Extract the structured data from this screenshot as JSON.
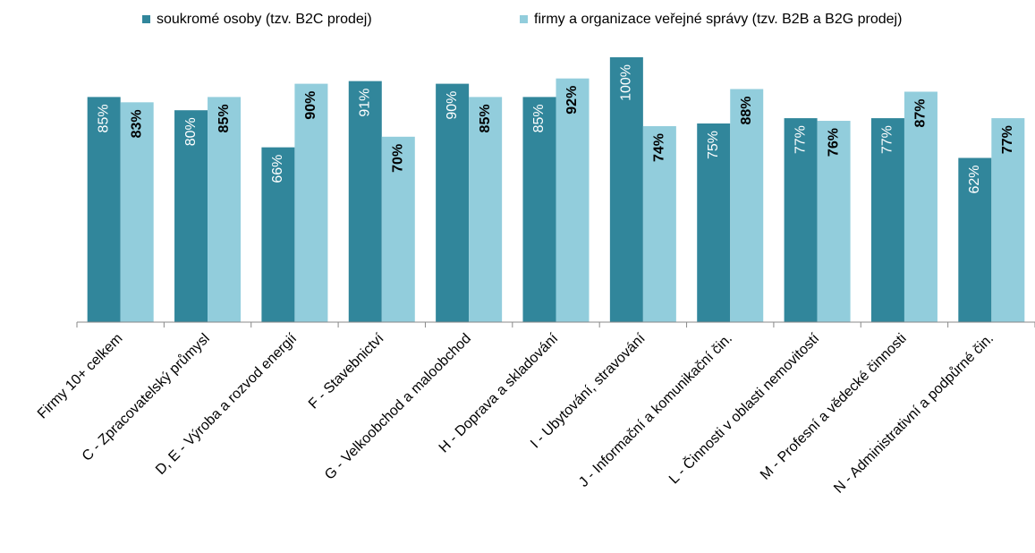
{
  "chart_data": {
    "type": "bar",
    "categories": [
      "Firmy 10+ celkem",
      "C - Zpracovatelský průmysl",
      "D, E - Výroba a rozvod energií",
      "F - Stavebnictví",
      "G - Velkoobchod a maloobchod",
      "H - Doprava a skladování",
      "I - Ubytování, stravování",
      "J - Informační a komunikační čin.",
      "L - Činnosti v oblasti nemovitostí",
      "M - Profesní a vědecké činnosti",
      "N - Administrativní a podpůrné čin."
    ],
    "series": [
      {
        "name": "soukromé osoby (tzv. B2C prodej)",
        "color": "#31869b",
        "values": [
          85,
          80,
          66,
          91,
          90,
          85,
          100,
          75,
          77,
          77,
          62
        ],
        "value_labels": [
          "85%",
          "80%",
          "66%",
          "91%",
          "90%",
          "85%",
          "100%",
          "75%",
          "77%",
          "77%",
          "62%"
        ]
      },
      {
        "name": "firmy a organizace veřejné správy (tzv. B2B a B2G prodej)",
        "color": "#92cddc",
        "values": [
          83,
          85,
          90,
          70,
          85,
          92,
          74,
          88,
          76,
          87,
          77
        ],
        "value_labels": [
          "83%",
          "85%",
          "90%",
          "70%",
          "85%",
          "92%",
          "74%",
          "88%",
          "76%",
          "87%",
          "77%"
        ]
      }
    ],
    "legend": "top"
  }
}
